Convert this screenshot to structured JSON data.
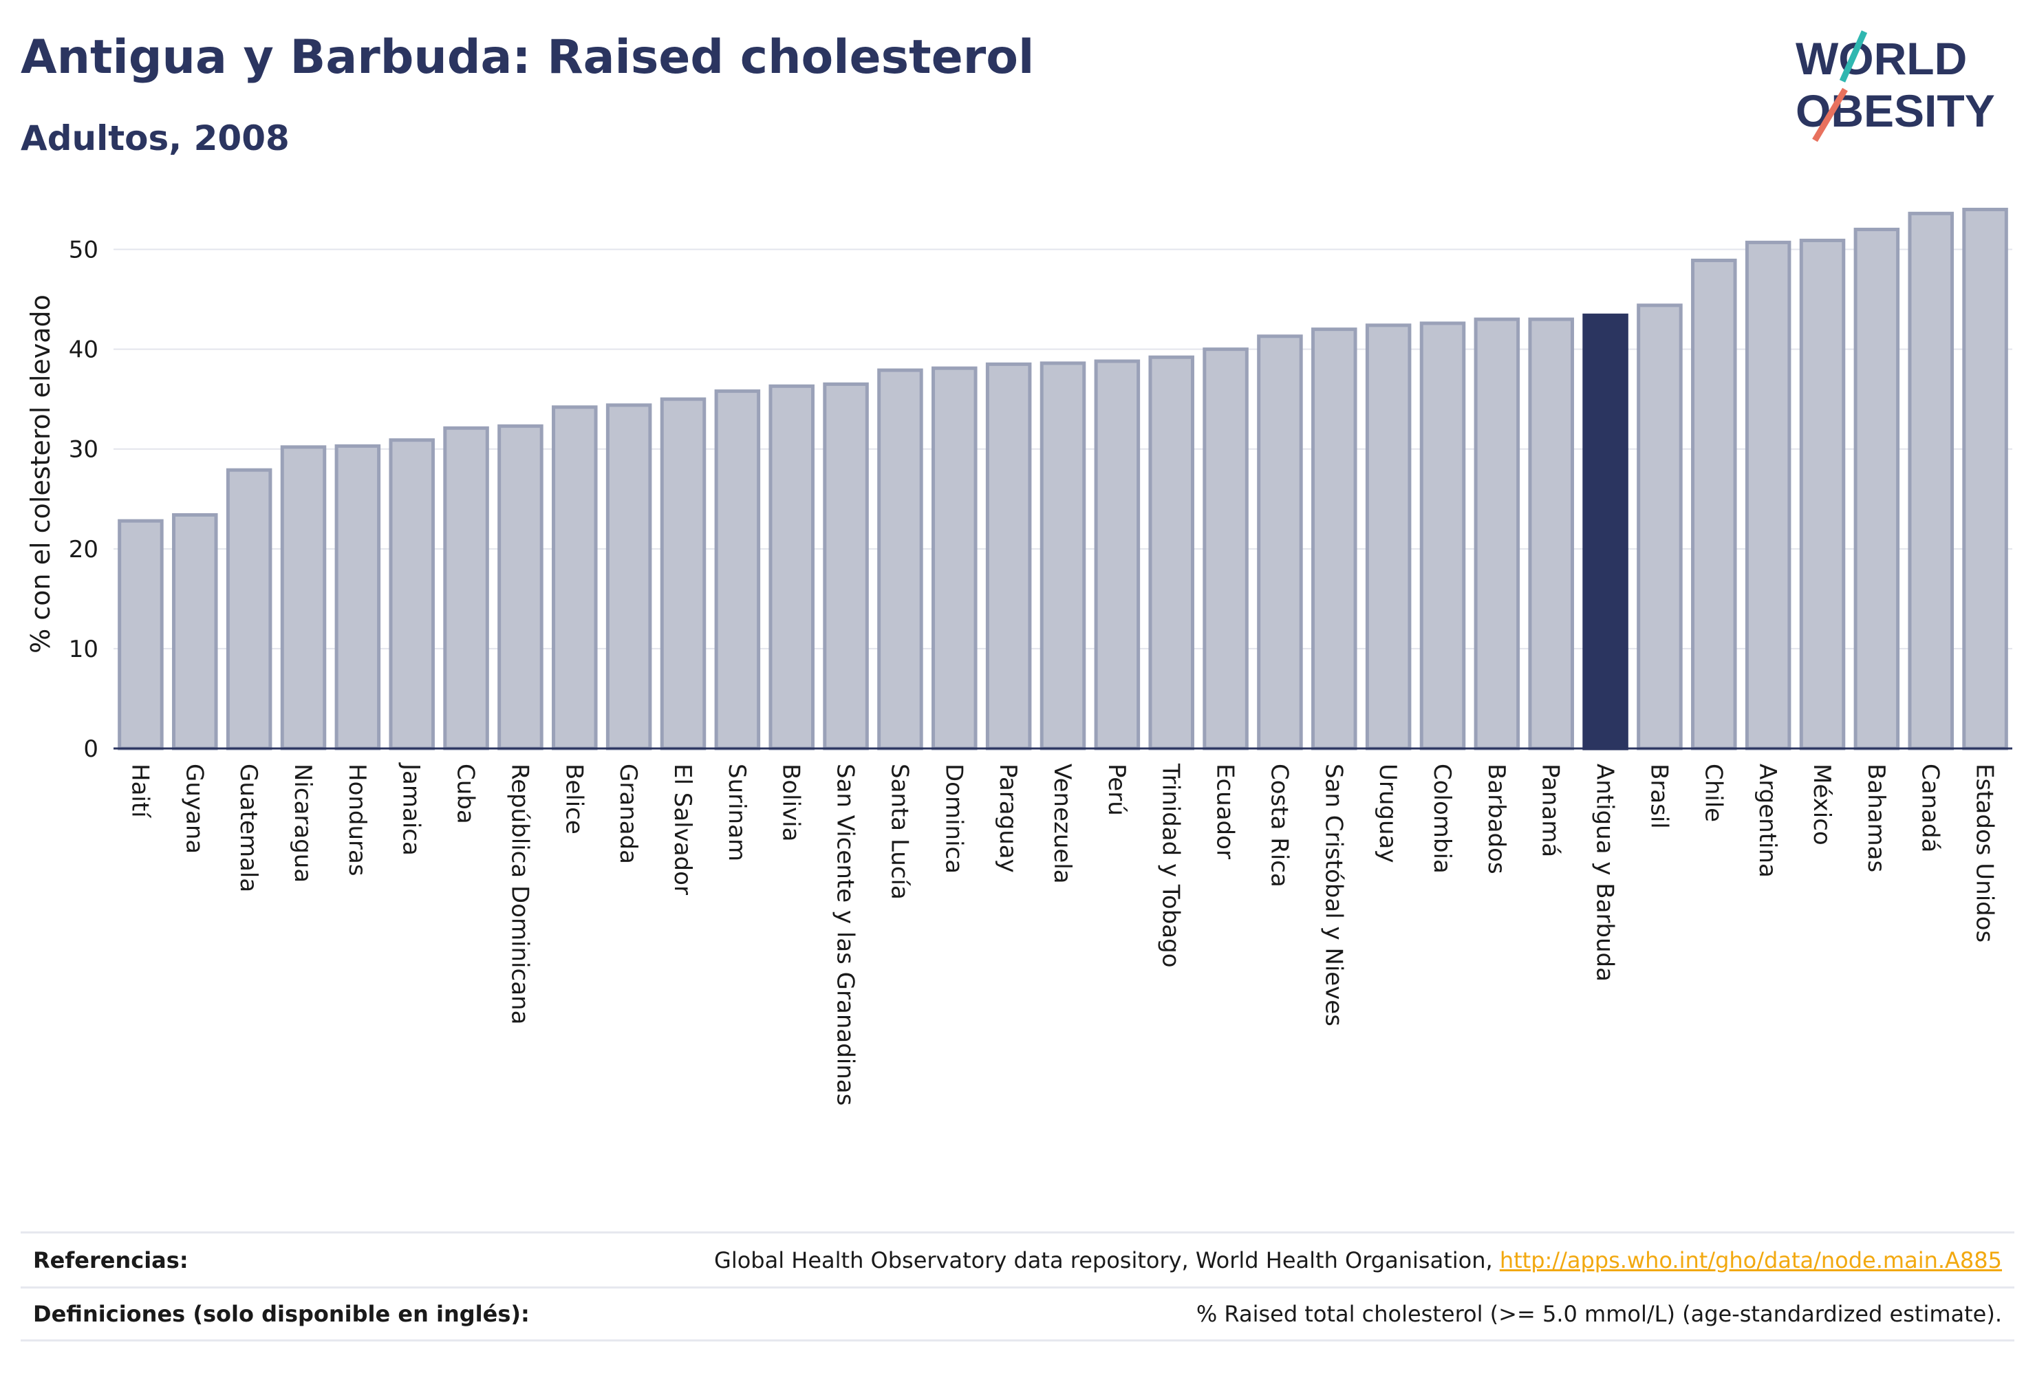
{
  "header": {
    "title": "Antigua y Barbuda: Raised cholesterol",
    "subtitle": "Adultos, 2008"
  },
  "logo": {
    "line1": "WORLD",
    "line2": "OBESITY",
    "accent_color_teal": "#2fb7b0",
    "accent_color_coral": "#e8715e"
  },
  "colors": {
    "bar_default": "#bfc3d0",
    "bar_default_stroke": "#9aa1b8",
    "bar_highlight": "#2b3560",
    "text": "#2b3560"
  },
  "chart_data": {
    "type": "bar",
    "ylabel": "% con el colesterol elevado",
    "ylim": [
      0,
      55
    ],
    "yticks": [
      0,
      10,
      20,
      30,
      40,
      50
    ],
    "grid": true,
    "highlight": "Antigua y Barbuda",
    "categories": [
      "Haití",
      "Guyana",
      "Guatemala",
      "Nicaragua",
      "Honduras",
      "Jamaica",
      "Cuba",
      "República Dominicana",
      "Belice",
      "Granada",
      "El Salvador",
      "Surinam",
      "Bolivia",
      "San Vicente y las Granadinas",
      "Santa Lucía",
      "Dominica",
      "Paraguay",
      "Venezuela",
      "Perú",
      "Trinidad y Tobago",
      "Ecuador",
      "Costa Rica",
      "San Cristóbal y Nieves",
      "Uruguay",
      "Colombia",
      "Barbados",
      "Panamá",
      "Antigua y Barbuda",
      "Brasil",
      "Chile",
      "Argentina",
      "México",
      "Bahamas",
      "Canadá",
      "Estados Unidos"
    ],
    "values": [
      22.8,
      23.4,
      27.9,
      30.2,
      30.3,
      30.9,
      32.1,
      32.3,
      34.2,
      34.4,
      35.0,
      35.8,
      36.3,
      36.5,
      37.9,
      38.1,
      38.5,
      38.6,
      38.8,
      39.2,
      40.0,
      41.3,
      42.0,
      42.4,
      42.6,
      43.0,
      43.0,
      43.4,
      44.4,
      48.9,
      50.7,
      50.9,
      52.0,
      53.6,
      54.0
    ]
  },
  "footer": {
    "references_label": "Referencias:",
    "references_text": "Global Health Observatory data repository, World Health Organisation, ",
    "references_link": "http://apps.who.int/gho/data/node.main.A885",
    "definitions_label": "Definiciones (solo disponible en inglés):",
    "definitions_text": "% Raised total cholesterol (>= 5.0 mmol/L) (age-standardized estimate)."
  }
}
